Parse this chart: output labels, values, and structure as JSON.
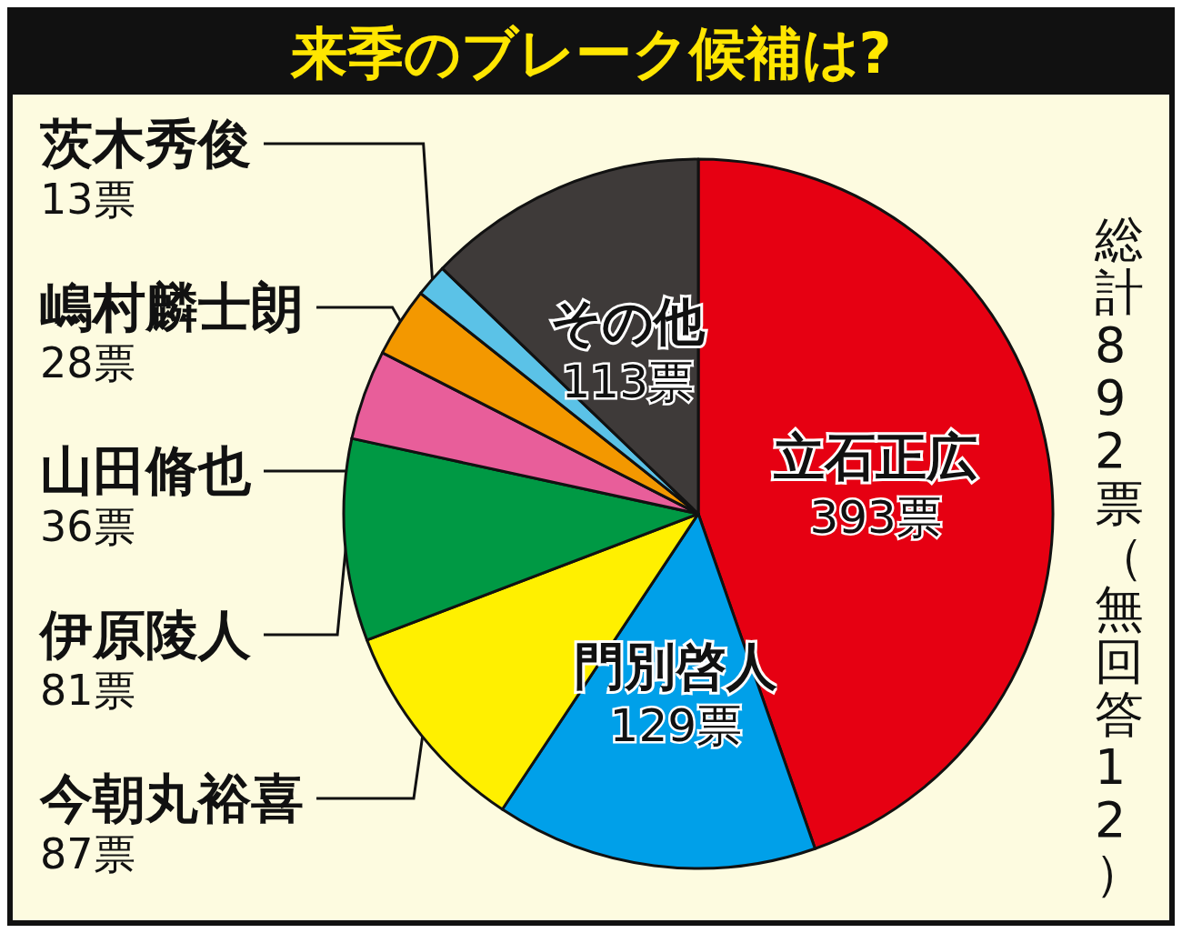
{
  "chart_data": {
    "type": "pie",
    "title": "来季のブレーク候補は?",
    "categories": [
      "立石正広",
      "門別啓人",
      "今朝丸裕喜",
      "伊原陵人",
      "山田脩也",
      "嶋村麟士朗",
      "茨木秀俊",
      "その他"
    ],
    "values": [
      393,
      129,
      87,
      81,
      36,
      28,
      13,
      113
    ],
    "value_labels": [
      "393票",
      "129票",
      "87票",
      "81票",
      "36票",
      "28票",
      "13票",
      "113票"
    ],
    "colors": [
      "#e60012",
      "#00a0e9",
      "#fff000",
      "#009944",
      "#e85e9a",
      "#f39800",
      "#5bc2e7",
      "#3e3a39"
    ],
    "annotations": [
      "総計892票（無回答12）"
    ]
  }
}
